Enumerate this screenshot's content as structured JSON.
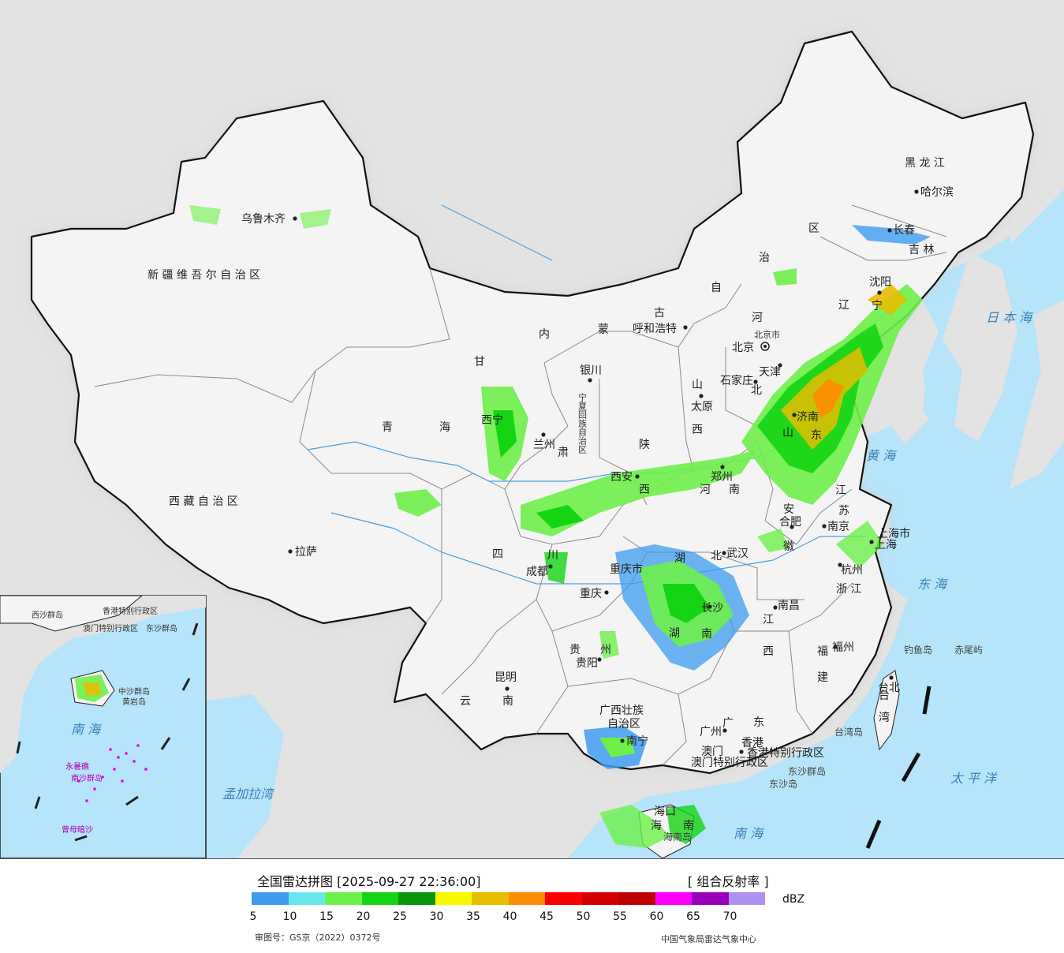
{
  "legend": {
    "title": "全国雷达拼图 [2025-09-27 22:36:00]",
    "product": "[ 组合反射率 ]",
    "unit": "dBZ",
    "scale": [
      {
        "value": "5",
        "color": "#3e9cf0"
      },
      {
        "value": "10",
        "color": "#68e6ec"
      },
      {
        "value": "15",
        "color": "#6ef04a"
      },
      {
        "value": "20",
        "color": "#14d414"
      },
      {
        "value": "25",
        "color": "#0a960a"
      },
      {
        "value": "30",
        "color": "#f8f800"
      },
      {
        "value": "35",
        "color": "#e6be00"
      },
      {
        "value": "40",
        "color": "#fe8c00"
      },
      {
        "value": "45",
        "color": "#fa0000"
      },
      {
        "value": "50",
        "color": "#d40000"
      },
      {
        "value": "55",
        "color": "#be0000"
      },
      {
        "value": "60",
        "color": "#ff00ff"
      },
      {
        "value": "65",
        "color": "#9a00b8"
      },
      {
        "value": "70",
        "color": "#ae90f0"
      }
    ],
    "approval_number": "审图号：GS京（2022）0372号",
    "source": "中国气象局雷达气象中心"
  },
  "provinces": {
    "xinjiang": "新 疆 维 吾 尔 自 治 区",
    "xizang": "西 藏 自 治 区",
    "qinghai_1": "青",
    "qinghai_2": "海",
    "gansu_1": "甘",
    "gansu_2": "肃",
    "neimenggu_1": "内",
    "neimenggu_2": "蒙",
    "neimenggu_3": "古",
    "neimenggu_4": "自",
    "neimenggu_5": "治",
    "neimenggu_6": "区",
    "heilongjiang": "黑 龙 江",
    "jilin": "吉 林",
    "liaoning_1": "辽",
    "liaoning_2": "宁",
    "hebei_1": "河",
    "hebei_2": "北",
    "shanxi_1": "山",
    "shanxi_2": "西",
    "shandong_1": "山",
    "shandong_2": "东",
    "shaanxi_1": "陕",
    "shaanxi_2": "西",
    "henan_1": "河",
    "henan_2": "南",
    "ningxia": "宁夏回族自治区",
    "sichuan_1": "四",
    "sichuan_2": "川",
    "chongqing": "重庆市",
    "hubei_1": "湖",
    "hubei_2": "北",
    "hunan_1": "湖",
    "hunan_2": "南",
    "anhui_1": "安",
    "anhui_2": "徽",
    "jiangsu_1": "江",
    "jiangsu_2": "苏",
    "shanghai": "上海市",
    "zhejiang": "浙 江",
    "jiangxi_1": "江",
    "jiangxi_2": "西",
    "fujian_1": "福",
    "fujian_2": "建",
    "guizhou_1": "贵",
    "guizhou_2": "州",
    "yunnan_1": "云",
    "yunnan_2": "南",
    "guangxi_1": "广西壮族",
    "guangxi_2": "自治区",
    "guangdong_1": "广",
    "guangdong_2": "东",
    "hainan_1": "海",
    "hainan_2": "南",
    "taiwan_1": "台",
    "taiwan_2": "湾",
    "hongkong": "香港特别行政区",
    "macao": "澳门特别行政区",
    "beijing": "北京市",
    "tianjin": "天津"
  },
  "cities": {
    "urumqi": "乌鲁木齐",
    "lhasa": "拉萨",
    "xining": "西宁",
    "lanzhou": "兰州",
    "yinchuan": "银川",
    "hohhot": "呼和浩特",
    "beijing": "北京",
    "tianjin": "天津",
    "shijiazhuang": "石家庄",
    "taiyuan": "太原",
    "jinan": "济南",
    "zhengzhou": "郑州",
    "xian": "西安",
    "chengdu": "成都",
    "chongqing": "重庆",
    "wuhan": "武汉",
    "changsha": "长沙",
    "hefei": "合肥",
    "nanjing": "南京",
    "shanghai": "上海",
    "hangzhou": "杭州",
    "nanchang": "南昌",
    "fuzhou": "福州",
    "taipei": "台北",
    "guiyang": "贵阳",
    "kunming": "昆明",
    "nanning": "南宁",
    "guangzhou": "广州",
    "hongkong": "香港",
    "macao": "澳门",
    "haikou": "海口",
    "harbin": "哈尔滨",
    "changchun": "长春",
    "shenyang": "沈阳"
  },
  "places": {
    "taiwan_island": "台湾岛",
    "hainan_island": "海南岛",
    "diaoyu": "钓鱼岛",
    "chiwei": "赤尾屿",
    "dongsha_qundao": "东沙群岛",
    "dongsha_dao": "东沙岛"
  },
  "seas": {
    "japan_sea": "日 本 海",
    "yellow_sea": "黄 海",
    "east_sea": "东 海",
    "pacific": "太 平 洋",
    "south_sea": "南 海",
    "bengal": "孟加拉湾"
  },
  "inset": {
    "south_sea": "南 海",
    "xisha": "西沙群岛",
    "zhongsha": "中沙群岛",
    "huangyan": "黄岩岛",
    "nansha": "南沙群岛",
    "zengmu": "曾母暗沙",
    "dongsha": "东沙群岛",
    "yongshu": "永暑礁",
    "hk": "香港特别行政区",
    "macao": "澳门特别行政区"
  },
  "colors": {
    "land": "#f4f4f4",
    "foreign_land": "#e3e3e3",
    "ocean": "#b6e4fa",
    "border": "#111111",
    "river": "#4a9fe0"
  }
}
